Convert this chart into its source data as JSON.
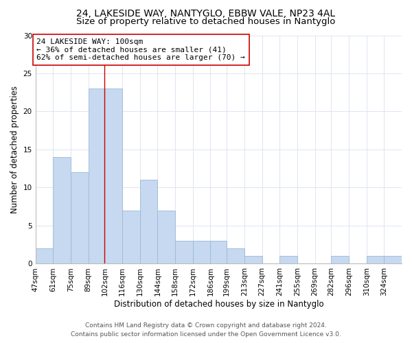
{
  "title_line1": "24, LAKESIDE WAY, NANTYGLO, EBBW VALE, NP23 4AL",
  "title_line2": "Size of property relative to detached houses in Nantyglo",
  "xlabel": "Distribution of detached houses by size in Nantyglo",
  "ylabel": "Number of detached properties",
  "bin_labels": [
    "47sqm",
    "61sqm",
    "75sqm",
    "89sqm",
    "102sqm",
    "116sqm",
    "130sqm",
    "144sqm",
    "158sqm",
    "172sqm",
    "186sqm",
    "199sqm",
    "213sqm",
    "227sqm",
    "241sqm",
    "255sqm",
    "269sqm",
    "282sqm",
    "296sqm",
    "310sqm",
    "324sqm"
  ],
  "bin_edges": [
    47,
    61,
    75,
    89,
    102,
    116,
    130,
    144,
    158,
    172,
    186,
    199,
    213,
    227,
    241,
    255,
    269,
    282,
    296,
    310,
    324,
    338
  ],
  "counts": [
    2,
    14,
    12,
    23,
    23,
    7,
    11,
    7,
    3,
    3,
    3,
    2,
    1,
    0,
    1,
    0,
    0,
    1,
    0,
    1,
    1
  ],
  "bar_color": "#c6d9f0",
  "bar_edge_color": "#9ab8d8",
  "reference_line_x": 102,
  "reference_line_color": "#cc0000",
  "annotation_line1": "24 LAKESIDE WAY: 100sqm",
  "annotation_line2": "← 36% of detached houses are smaller (41)",
  "annotation_line3": "62% of semi-detached houses are larger (70) →",
  "annotation_box_color": "#ffffff",
  "annotation_box_edge_color": "#cc0000",
  "ylim": [
    0,
    30
  ],
  "yticks": [
    0,
    5,
    10,
    15,
    20,
    25,
    30
  ],
  "footer_line1": "Contains HM Land Registry data © Crown copyright and database right 2024.",
  "footer_line2": "Contains public sector information licensed under the Open Government Licence v3.0.",
  "title_fontsize": 10,
  "subtitle_fontsize": 9.5,
  "axis_label_fontsize": 8.5,
  "tick_fontsize": 7.5,
  "annotation_fontsize": 8,
  "footer_fontsize": 6.5,
  "grid_color": "#dde5f0"
}
